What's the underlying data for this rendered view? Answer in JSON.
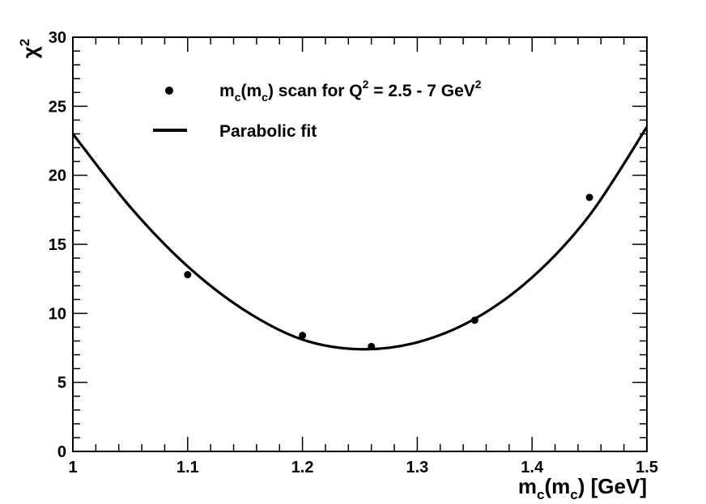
{
  "chart_data": {
    "type": "scatter",
    "xlabel": "m_c(m_c) [GeV]",
    "ylabel": "χ²",
    "xlim": [
      1.0,
      1.5
    ],
    "ylim": [
      0,
      30
    ],
    "x_ticks": [
      "1",
      "1.1",
      "1.2",
      "1.3",
      "1.4",
      "1.5"
    ],
    "y_ticks": [
      "0",
      "5",
      "10",
      "15",
      "20",
      "25",
      "30"
    ],
    "grid": false,
    "legend_position": "top-left",
    "series": [
      {
        "name": "m_c(m_c) scan for Q² = 2.5 - 7 GeV²",
        "kind": "points",
        "x": [
          1.1,
          1.2,
          1.26,
          1.35,
          1.45
        ],
        "y": [
          12.8,
          8.4,
          7.6,
          9.5,
          18.4
        ]
      },
      {
        "name": "Parabolic fit",
        "kind": "curve",
        "x": [
          1.0,
          1.05,
          1.1,
          1.15,
          1.2,
          1.25,
          1.3,
          1.35,
          1.4,
          1.45,
          1.5
        ],
        "y": [
          23.0,
          17.7,
          13.4,
          10.2,
          8.1,
          7.4,
          7.9,
          9.6,
          12.6,
          17.1,
          23.5
        ]
      }
    ]
  },
  "legend": {
    "points_label": {
      "main": "m",
      "sub1": "c",
      "mid": "(m",
      "sub2": "c",
      "rest": ") scan for Q",
      "sup1": "2",
      "rest2": " = 2.5 - 7 GeV",
      "sup2": "2"
    },
    "curve_label": "Parabolic fit"
  },
  "axis_titles": {
    "x": {
      "main": "m",
      "sub1": "c",
      "mid": "(m",
      "sub2": "c",
      "rest": ") [GeV]"
    },
    "y": {
      "main": "χ",
      "sup": "2"
    }
  }
}
